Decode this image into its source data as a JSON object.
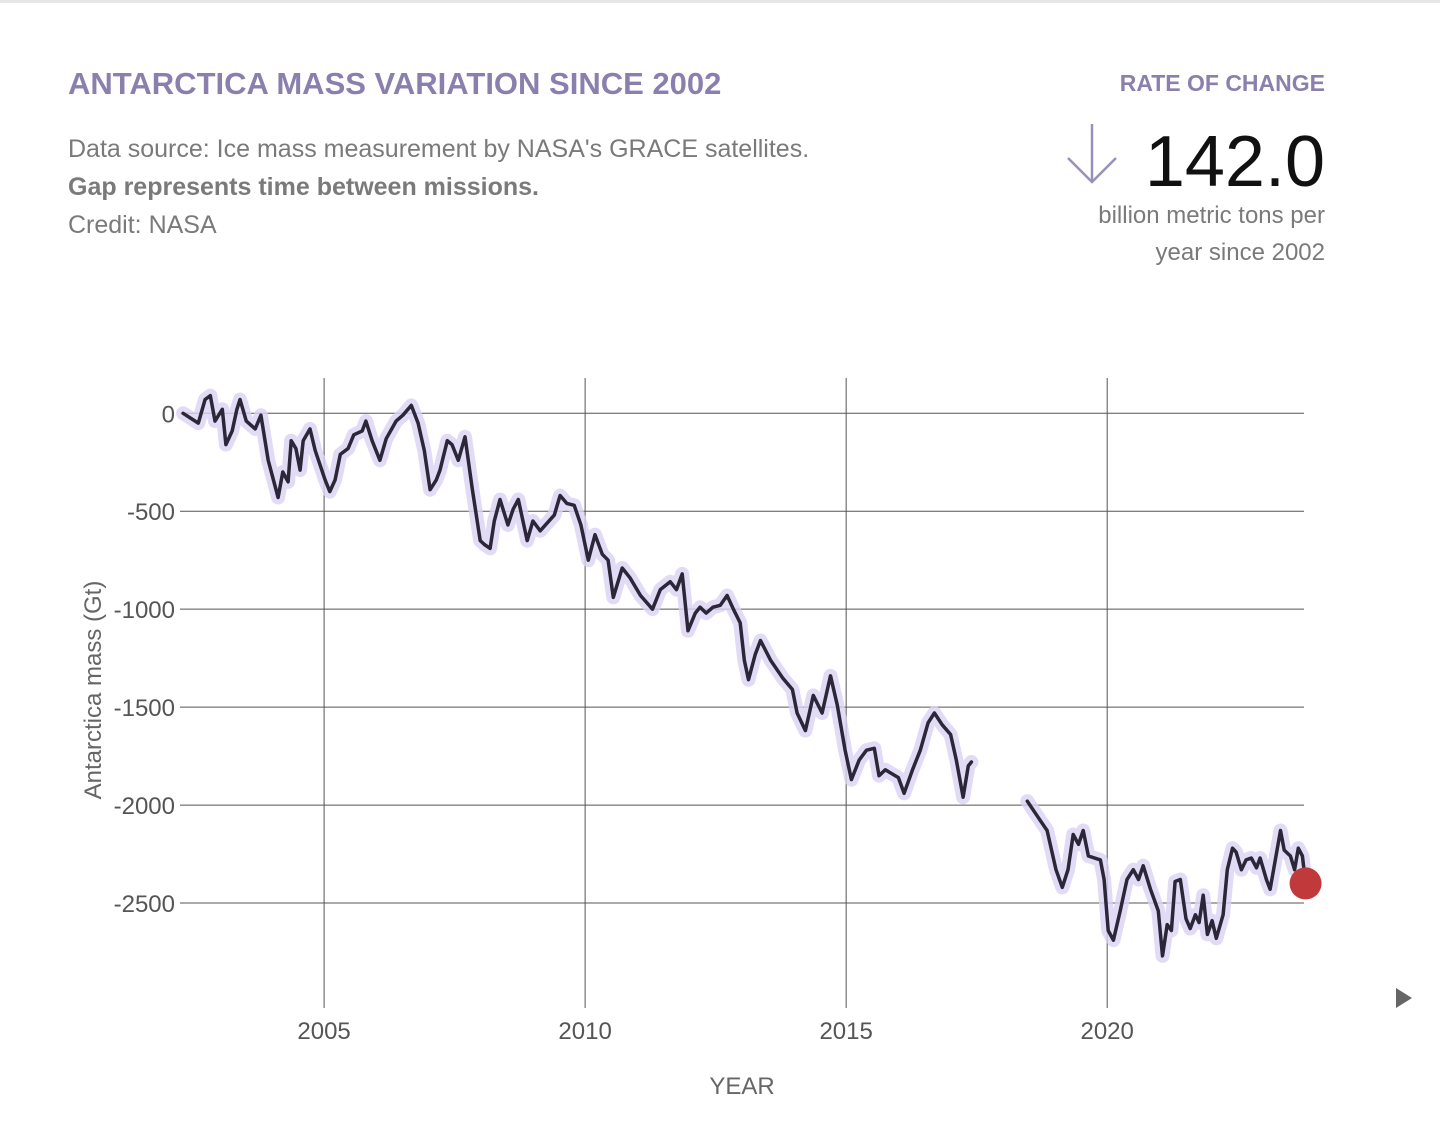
{
  "header": {
    "title": "ANTARCTICA MASS VARIATION SINCE 2002",
    "source": "Data source: Ice mass measurement by NASA's GRACE satellites.",
    "gap_note": "Gap represents time between missions.",
    "credit": "Credit: NASA",
    "rate_label": "RATE OF CHANGE",
    "rate_value": "142.0",
    "rate_unit": [
      "billion metric tons per",
      "year since 2002"
    ]
  },
  "chart_data": {
    "type": "line",
    "x_label": "YEAR",
    "y_label": "Antarctica mass (Gt)",
    "color": "#2b2638",
    "band_color": "#d9d2f2",
    "marker_color": "#c0393b",
    "xlim": [
      2002.24,
      2023.77
    ],
    "ylim": [
      -2995,
      180
    ],
    "xticks": [
      2005,
      2010,
      2015,
      2020
    ],
    "yticks": [
      0,
      -500,
      -1000,
      -1500,
      -2000,
      -2500
    ],
    "grid": true,
    "x": [
      2002.3,
      2002.59,
      2002.72,
      2002.82,
      2002.91,
      2003.05,
      2003.12,
      2003.24,
      2003.33,
      2003.39,
      2003.51,
      2003.68,
      2003.79,
      2003.93,
      2004.12,
      2004.21,
      2004.31,
      2004.37,
      2004.46,
      2004.54,
      2004.6,
      2004.73,
      2004.83,
      2005.02,
      2005.11,
      2005.21,
      2005.31,
      2005.46,
      2005.57,
      2005.73,
      2005.8,
      2005.92,
      2006.07,
      2006.19,
      2006.38,
      2006.51,
      2006.67,
      2006.8,
      2006.92,
      2007.03,
      2007.15,
      2007.22,
      2007.36,
      2007.45,
      2007.57,
      2007.7,
      2007.84,
      2007.99,
      2008.07,
      2008.18,
      2008.26,
      2008.37,
      2008.52,
      2008.62,
      2008.72,
      2008.89,
      2009.0,
      2009.14,
      2009.41,
      2009.52,
      2009.65,
      2009.79,
      2009.92,
      2010.06,
      2010.19,
      2010.33,
      2010.44,
      2010.54,
      2010.71,
      2010.86,
      2011.06,
      2011.29,
      2011.44,
      2011.63,
      2011.75,
      2011.86,
      2011.97,
      2012.11,
      2012.2,
      2012.32,
      2012.45,
      2012.59,
      2012.72,
      2012.84,
      2012.97,
      2013.05,
      2013.13,
      2013.26,
      2013.36,
      2013.55,
      2013.78,
      2013.97,
      2014.06,
      2014.22,
      2014.37,
      2014.54,
      2014.7,
      2014.83,
      2014.98,
      2015.1,
      2015.25,
      2015.39,
      2015.54,
      2015.63,
      2015.75,
      2016.0,
      2016.11,
      2016.27,
      2016.42,
      2016.57,
      2016.69,
      2016.84,
      2017.0,
      2017.11,
      2017.24,
      2017.34,
      2017.4,
      2017.9,
      2018.47,
      2018.72,
      2018.85,
      2019.02,
      2019.14,
      2019.25,
      2019.35,
      2019.45,
      2019.54,
      2019.64,
      2019.87,
      2019.94,
      2020.02,
      2020.12,
      2020.25,
      2020.38,
      2020.5,
      2020.6,
      2020.69,
      2020.83,
      2020.98,
      2021.06,
      2021.15,
      2021.23,
      2021.3,
      2021.4,
      2021.51,
      2021.59,
      2021.69,
      2021.76,
      2021.84,
      2021.92,
      2022.01,
      2022.09,
      2022.22,
      2022.3,
      2022.4,
      2022.47,
      2022.57,
      2022.66,
      2022.76,
      2022.86,
      2022.93,
      2023.05,
      2023.12,
      2023.22,
      2023.32,
      2023.39,
      2023.51,
      2023.59,
      2023.66,
      2023.74,
      2023.8
    ],
    "values": [
      0,
      -50,
      70,
      90,
      -40,
      20,
      -160,
      -90,
      20,
      70,
      -40,
      -80,
      -10,
      -240,
      -430,
      -300,
      -350,
      -140,
      -180,
      -290,
      -140,
      -80,
      -190,
      -340,
      -400,
      -340,
      -210,
      -180,
      -110,
      -90,
      -40,
      -140,
      -240,
      -130,
      -40,
      -10,
      40,
      -50,
      -190,
      -390,
      -340,
      -290,
      -140,
      -160,
      -240,
      -120,
      -390,
      -650,
      -670,
      -690,
      -550,
      -440,
      -570,
      -490,
      -440,
      -650,
      -550,
      -600,
      -520,
      -420,
      -460,
      -470,
      -570,
      -750,
      -620,
      -720,
      -750,
      -940,
      -790,
      -840,
      -930,
      -1000,
      -900,
      -860,
      -900,
      -820,
      -1110,
      -1020,
      -990,
      -1020,
      -990,
      -980,
      -930,
      -1000,
      -1070,
      -1260,
      -1360,
      -1230,
      -1160,
      -1260,
      -1350,
      -1410,
      -1530,
      -1620,
      -1440,
      -1530,
      -1340,
      -1490,
      -1720,
      -1870,
      -1770,
      -1720,
      -1710,
      -1850,
      -1820,
      -1860,
      -1940,
      -1820,
      -1720,
      -1580,
      -1530,
      -1590,
      -1640,
      -1770,
      -1960,
      -1800,
      -1780,
      null,
      -1980,
      -2080,
      -2130,
      -2330,
      -2420,
      -2330,
      -2150,
      -2200,
      -2130,
      -2260,
      -2280,
      -2380,
      -2640,
      -2690,
      -2540,
      -2380,
      -2330,
      -2380,
      -2310,
      -2430,
      -2540,
      -2770,
      -2610,
      -2640,
      -2390,
      -2380,
      -2580,
      -2630,
      -2560,
      -2600,
      -2460,
      -2660,
      -2590,
      -2680,
      -2560,
      -2330,
      -2220,
      -2240,
      -2330,
      -2280,
      -2270,
      -2320,
      -2270,
      -2380,
      -2430,
      -2280,
      -2130,
      -2230,
      -2260,
      -2330,
      -2220,
      -2260,
      -2400
    ]
  }
}
